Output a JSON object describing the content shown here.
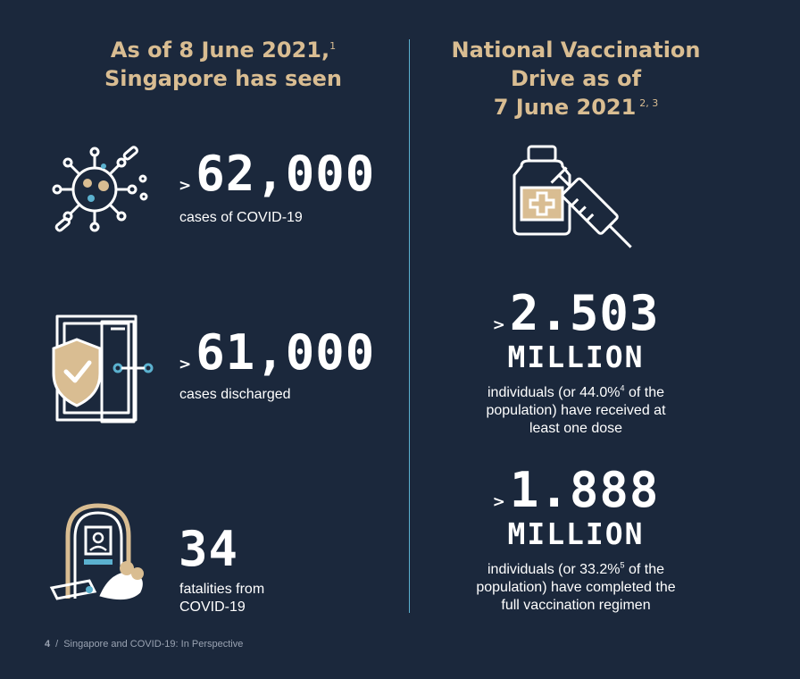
{
  "left": {
    "heading_line1": "As of 8 June 2021,",
    "heading_ref": "1",
    "heading_line2": "Singapore has seen",
    "stats": [
      {
        "prefix": ">",
        "value": "62,000",
        "caption": "cases of COVID-19",
        "icon": "virus-icon"
      },
      {
        "prefix": ">",
        "value": "61,000",
        "caption": "cases discharged",
        "icon": "shield-door-icon"
      },
      {
        "prefix": "",
        "value": "34",
        "caption_line1": "fatalities from",
        "caption_line2": "COVID-19",
        "icon": "memorial-icon"
      }
    ]
  },
  "right": {
    "heading_line1": "National Vaccination",
    "heading_line2": "Drive as of",
    "heading_line3": "7 June 2021",
    "heading_ref": "2, 3",
    "icon": "vaccine-syringe-icon",
    "stats": [
      {
        "prefix": ">",
        "value": "2.503",
        "unit": "MILLION",
        "line1a": "individuals (or 44.0%",
        "line1_ref": "4",
        "line1b": " of the",
        "line2": "population) have received at",
        "line3": "least one dose"
      },
      {
        "prefix": ">",
        "value": "1.888",
        "unit": "MILLION",
        "line1a": "individuals (or 33.2%",
        "line1_ref": "5",
        "line1b": " of the",
        "line2": "population) have completed the",
        "line3": "full vaccination regimen"
      }
    ]
  },
  "footer": {
    "page_number": "4",
    "separator": "/",
    "text": "Singapore and COVID-19: In Perspective"
  },
  "colors": {
    "background": "#1b283c",
    "accent_gold": "#d9bd92",
    "accent_blue": "#5bb1cf",
    "text": "#ffffff"
  }
}
